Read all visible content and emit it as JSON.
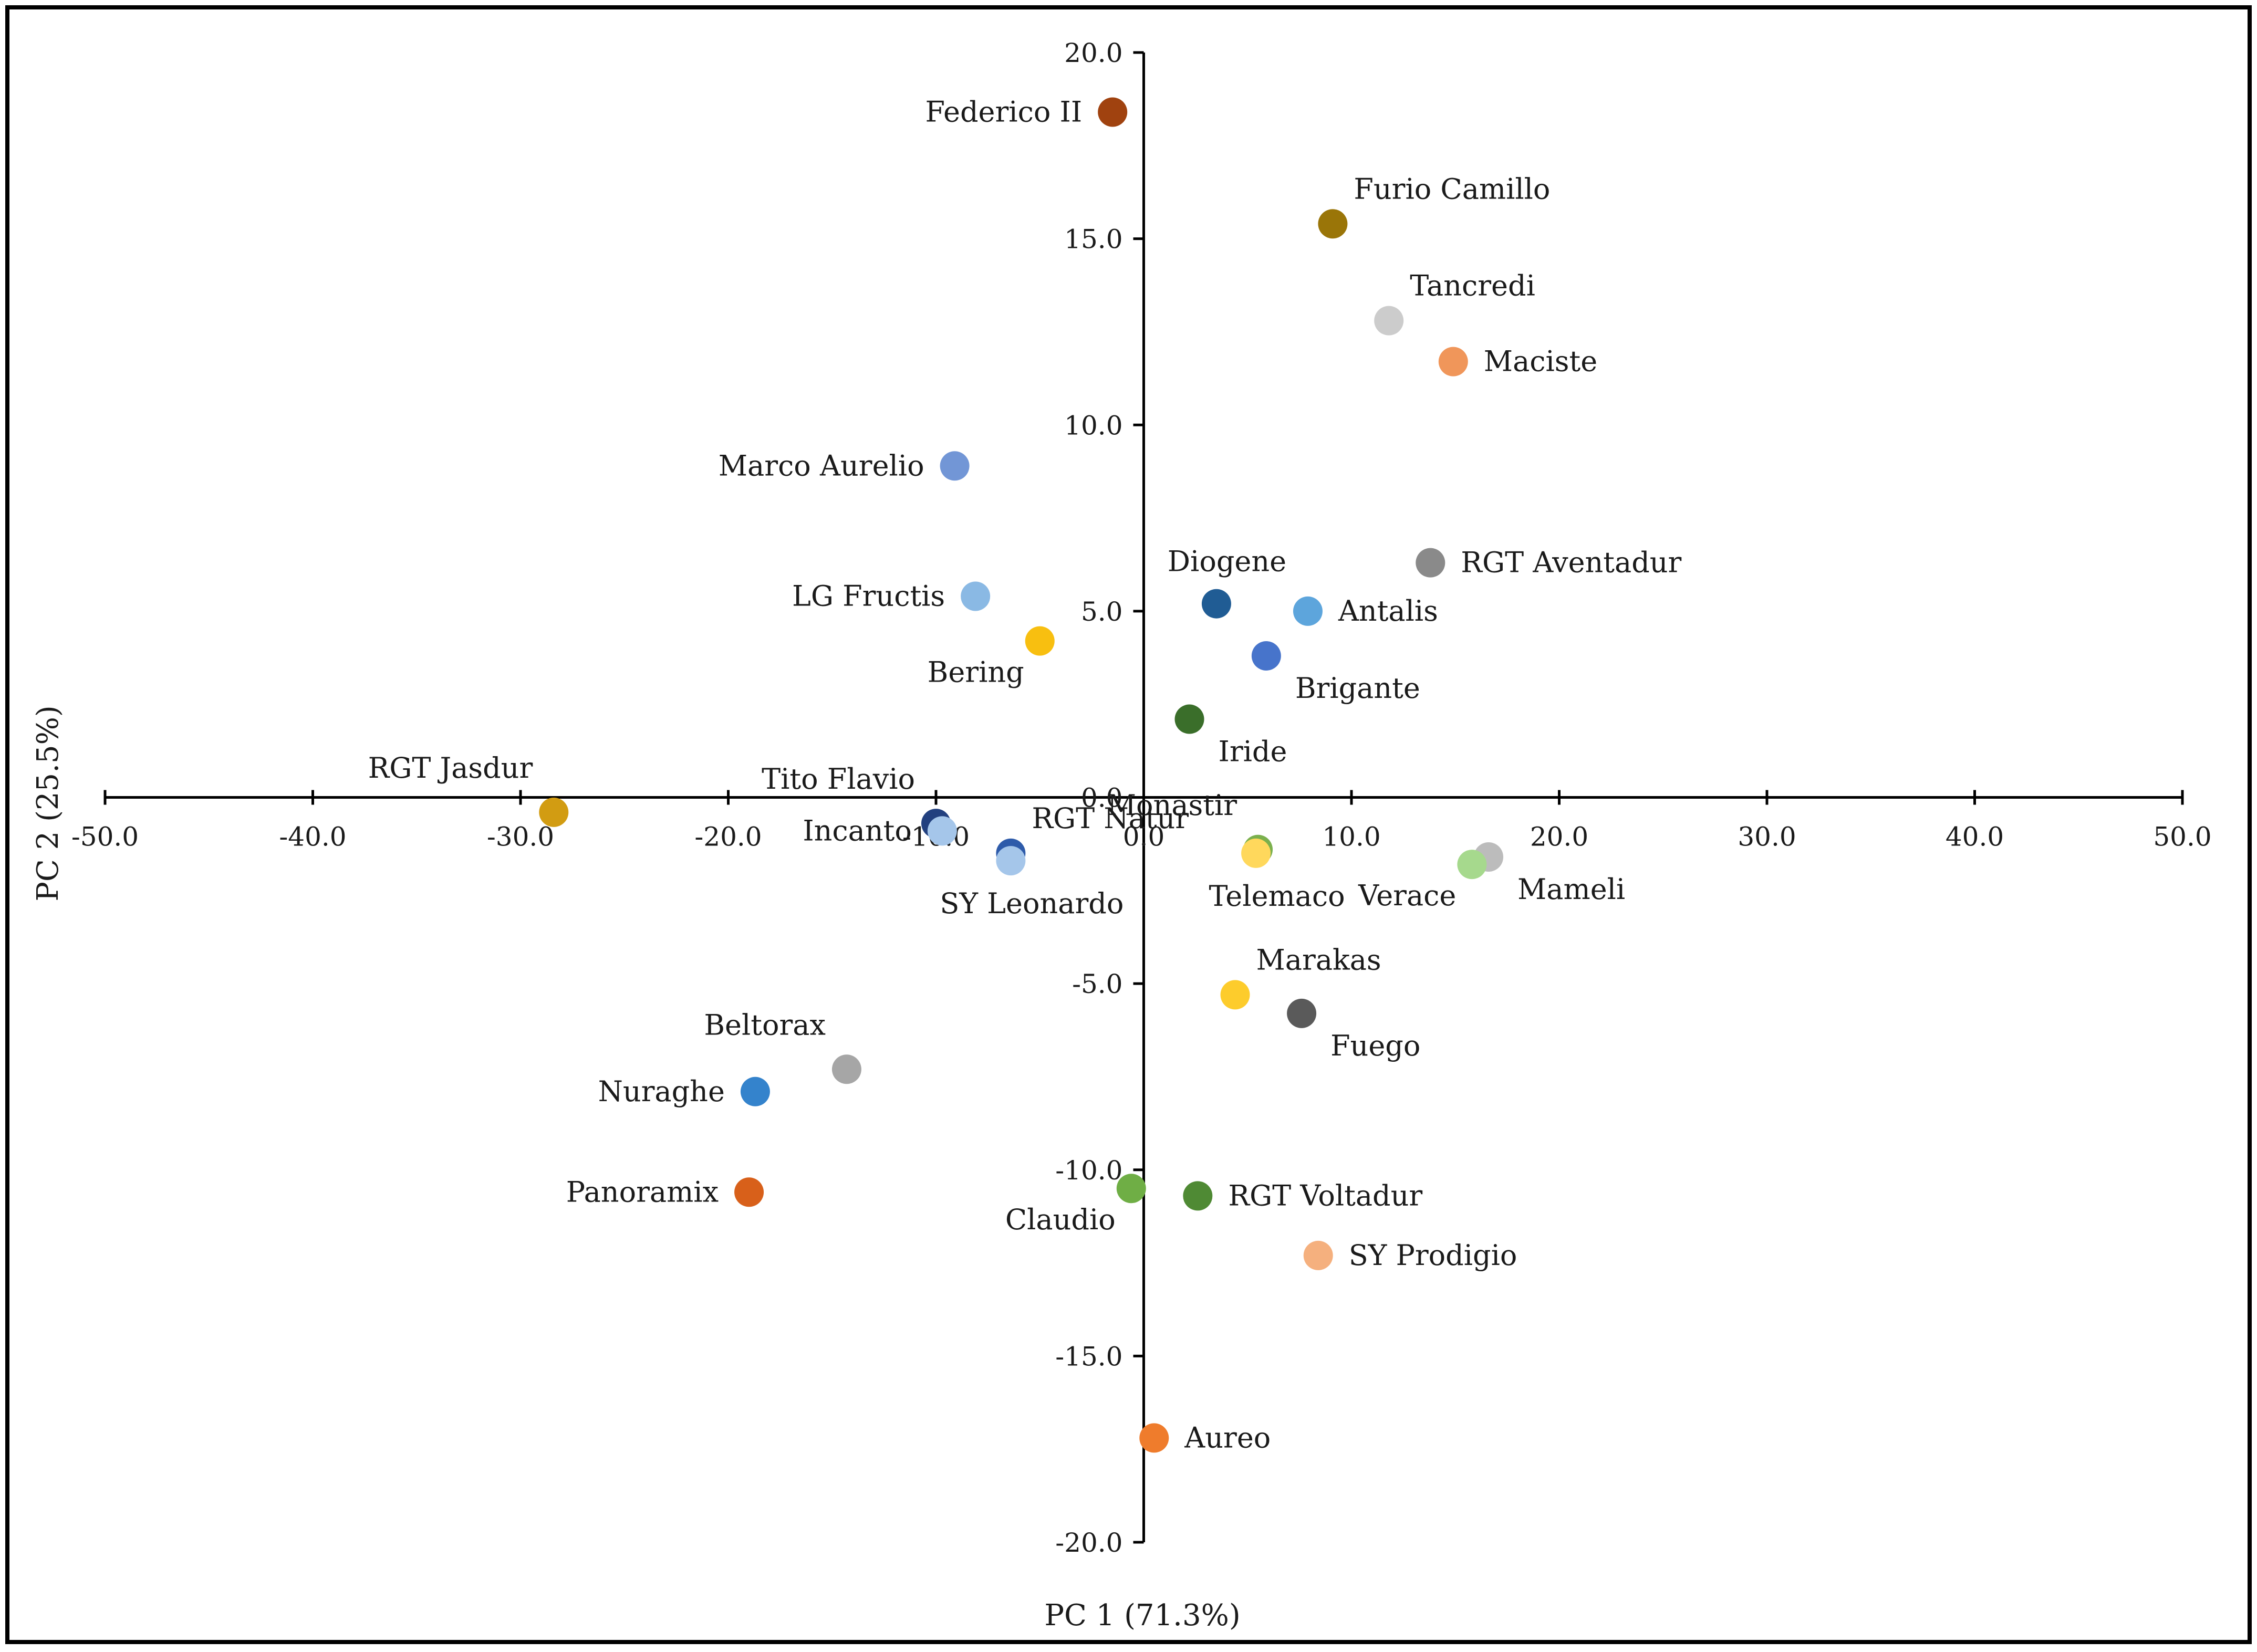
{
  "chart_data": {
    "type": "scatter",
    "title": "",
    "xlabel": "PC 1 (71.3%)",
    "ylabel": "PC 2 (25.5%)",
    "xlim": [
      -50,
      50
    ],
    "ylim": [
      -20,
      20
    ],
    "x_ticks": [
      "-50.0",
      "-40.0",
      "-30.0",
      "-20.0",
      "-10.0",
      "0.0",
      "10.0",
      "20.0",
      "30.0",
      "40.0",
      "50.0"
    ],
    "y_ticks": [
      "-20.0",
      "-15.0",
      "-10.0",
      "-5.0",
      "0.0",
      "5.0",
      "10.0",
      "15.0",
      "20.0"
    ],
    "grid": false,
    "legend": "none",
    "points": [
      {
        "label": "Federico II",
        "x": -1.5,
        "y": 18.4,
        "color": "#a0420f",
        "label_pos": "left"
      },
      {
        "label": "Furio Camillo",
        "x": 9.1,
        "y": 15.4,
        "color": "#9a7508",
        "label_pos": "upper-right"
      },
      {
        "label": "Tancredi",
        "x": 11.8,
        "y": 12.8,
        "color": "#cccccc",
        "label_pos": "upper-right"
      },
      {
        "label": "Maciste",
        "x": 14.9,
        "y": 11.7,
        "color": "#f0965a",
        "label_pos": "right"
      },
      {
        "label": "Marco Aurelio",
        "x": -9.1,
        "y": 8.9,
        "color": "#7296d6",
        "label_pos": "left"
      },
      {
        "label": "RGT Aventadur",
        "x": 13.8,
        "y": 6.3,
        "color": "#8a8a8a",
        "label_pos": "right"
      },
      {
        "label": "Diogene",
        "x": 3.5,
        "y": 5.2,
        "color": "#205c94",
        "label_pos": "above"
      },
      {
        "label": "Antalis",
        "x": 7.9,
        "y": 5.0,
        "color": "#5da5dc",
        "label_pos": "right"
      },
      {
        "label": "LG Fructis",
        "x": -8.1,
        "y": 5.4,
        "color": "#8ab9e4",
        "label_pos": "left"
      },
      {
        "label": "Bering",
        "x": -5.0,
        "y": 4.2,
        "color": "#f8bf10",
        "label_pos": "lower-left"
      },
      {
        "label": "Brigante",
        "x": 5.9,
        "y": 3.8,
        "color": "#4774cb",
        "label_pos": "lower-right"
      },
      {
        "label": "Iride",
        "x": 2.2,
        "y": 2.1,
        "color": "#3a6e2a",
        "label_pos": "lower-right"
      },
      {
        "label": "RGT Jasdur",
        "x": -28.4,
        "y": -0.4,
        "color": "#d29c12",
        "label_pos": "upper-left"
      },
      {
        "label": "Tito Flavio",
        "x": -10.0,
        "y": -0.7,
        "color": "#22407f",
        "label_pos": "upper-left"
      },
      {
        "label": "Incanto",
        "x": -9.7,
        "y": -0.9,
        "color": "#a5c6ea",
        "label_pos": "left"
      },
      {
        "label": "RGT Natur",
        "x": -6.4,
        "y": -1.5,
        "color": "#2e5baa",
        "label_pos": "upper-right"
      },
      {
        "label": "SY Leonardo",
        "x": -6.4,
        "y": -1.7,
        "color": "#a5c6ea",
        "label_pos": "below"
      },
      {
        "label": "Monastir",
        "x": 5.5,
        "y": -1.4,
        "color": "#7bb04d",
        "label_pos": "upper-left"
      },
      {
        "label": "Telemaco",
        "x": 5.4,
        "y": -1.5,
        "color": "#ffd85c",
        "label_pos": "below"
      },
      {
        "label": "Mameli",
        "x": 16.6,
        "y": -1.6,
        "color": "#bcbcbc",
        "label_pos": "lower-right"
      },
      {
        "label": "Verace",
        "x": 15.8,
        "y": -1.8,
        "color": "#a6d98d",
        "label_pos": "lower-left"
      },
      {
        "label": "Marakas",
        "x": 4.4,
        "y": -5.3,
        "color": "#fdcc2c",
        "label_pos": "upper-right"
      },
      {
        "label": "Fuego",
        "x": 7.6,
        "y": -5.8,
        "color": "#5a5a5a",
        "label_pos": "lower-right"
      },
      {
        "label": "Beltorax",
        "x": -14.3,
        "y": -7.3,
        "color": "#a6a6a6",
        "label_pos": "upper-left"
      },
      {
        "label": "Nuraghe",
        "x": -18.7,
        "y": -7.9,
        "color": "#3483cc",
        "label_pos": "left"
      },
      {
        "label": "Panoramix",
        "x": -19.0,
        "y": -10.6,
        "color": "#d8601a",
        "label_pos": "left"
      },
      {
        "label": "Claudio",
        "x": -0.6,
        "y": -10.5,
        "color": "#6fae45",
        "label_pos": "lower-left"
      },
      {
        "label": "RGT Voltadur",
        "x": 2.6,
        "y": -10.7,
        "color": "#4f8a34",
        "label_pos": "right"
      },
      {
        "label": "SY Prodigio",
        "x": 8.4,
        "y": -12.3,
        "color": "#f5b07e",
        "label_pos": "right"
      },
      {
        "label": "Aureo",
        "x": 0.5,
        "y": -17.2,
        "color": "#ef7c2c",
        "label_pos": "right"
      }
    ]
  }
}
